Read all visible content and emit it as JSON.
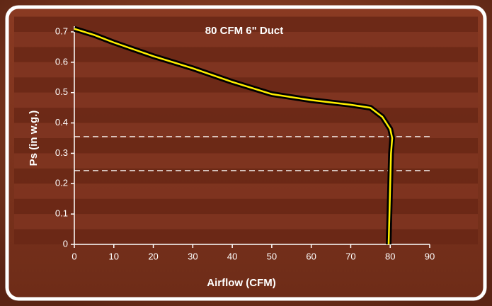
{
  "chart_data": {
    "type": "line",
    "title": "80 CFM 6\" Duct",
    "xlabel": "Airflow (CFM)",
    "ylabel": "Ps (in w.g.)",
    "x": [
      0,
      5,
      10,
      20,
      30,
      40,
      50,
      60,
      70,
      75,
      78,
      80,
      80.5,
      80.2,
      80,
      79.8,
      79.6
    ],
    "values": [
      0.71,
      0.69,
      0.665,
      0.62,
      0.58,
      0.535,
      0.495,
      0.475,
      0.46,
      0.45,
      0.42,
      0.38,
      0.35,
      0.3,
      0.2,
      0.1,
      0
    ],
    "color": "#ffee00",
    "xlim": [
      0,
      90
    ],
    "xticks": [
      0,
      10,
      20,
      30,
      40,
      50,
      60,
      70,
      80,
      90
    ],
    "ylim": [
      0,
      0.7
    ],
    "yticks": [
      0,
      0.1,
      0.2,
      0.3,
      0.4,
      0.5,
      0.6,
      0.7
    ],
    "reference_lines": [
      0.355,
      0.243
    ]
  }
}
